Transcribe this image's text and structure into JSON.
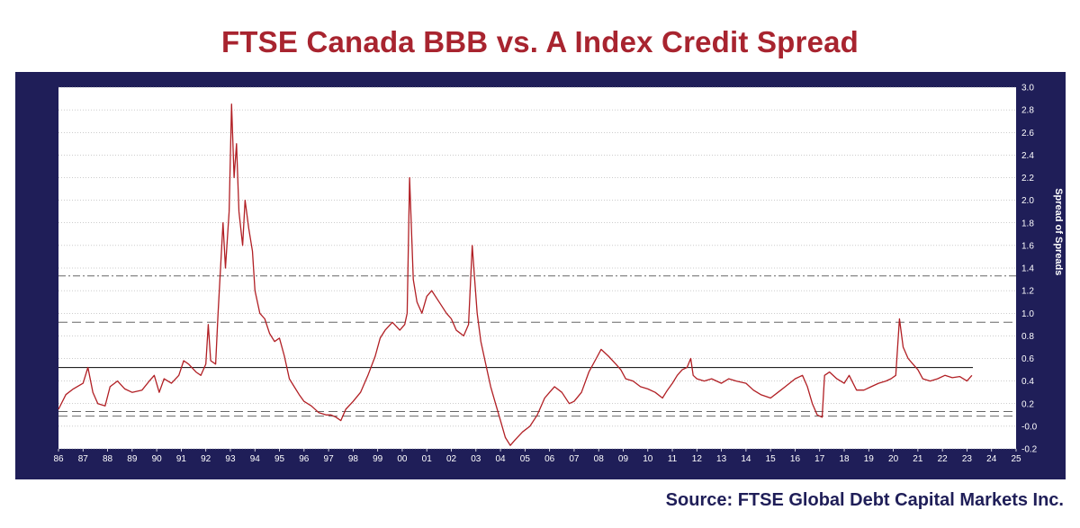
{
  "title": "FTSE Canada BBB vs. A Index Credit Spread",
  "source": "Source: FTSE Global Debt Capital Markets Inc.",
  "colors": {
    "title": "#a8242f",
    "panel": "#1f1e58",
    "series": "#b11f24",
    "grid": "#9a9a9a"
  },
  "chart_data": {
    "type": "line",
    "title": "FTSE Canada BBB vs. A Index Credit Spread",
    "xlabel": "",
    "ylabel": "Spread of Spreads",
    "xlim": [
      86,
      125
    ],
    "ylim": [
      -0.2,
      3.0
    ],
    "x_ticks": [
      "86",
      "87",
      "88",
      "89",
      "90",
      "91",
      "92",
      "93",
      "94",
      "95",
      "96",
      "97",
      "98",
      "99",
      "00",
      "01",
      "02",
      "03",
      "04",
      "05",
      "06",
      "07",
      "08",
      "09",
      "10",
      "11",
      "12",
      "13",
      "14",
      "15",
      "16",
      "17",
      "18",
      "19",
      "20",
      "21",
      "22",
      "23",
      "24",
      "25"
    ],
    "y_ticks": [
      "-0.2",
      "-0.0",
      "0.2",
      "0.4",
      "0.6",
      "0.8",
      "1.0",
      "1.2",
      "1.4",
      "1.6",
      "1.8",
      "2.0",
      "2.2",
      "2.4",
      "2.6",
      "2.8",
      "3.0"
    ],
    "grid": true,
    "y_axis_side": "right",
    "reference_lines": [
      {
        "y": 1.33,
        "style": "dash-dot"
      },
      {
        "y": 0.92,
        "style": "dashed"
      },
      {
        "y": 0.52,
        "style": "solid"
      },
      {
        "y": 0.13,
        "style": "dashed"
      },
      {
        "y": 0.09,
        "style": "dashed"
      }
    ],
    "series": [
      {
        "values": [
          [
            86.0,
            0.15
          ],
          [
            86.3,
            0.28
          ],
          [
            86.6,
            0.33
          ],
          [
            87.0,
            0.38
          ],
          [
            87.2,
            0.52
          ],
          [
            87.4,
            0.3
          ],
          [
            87.6,
            0.2
          ],
          [
            87.9,
            0.18
          ],
          [
            88.1,
            0.35
          ],
          [
            88.4,
            0.4
          ],
          [
            88.7,
            0.33
          ],
          [
            89.0,
            0.3
          ],
          [
            89.4,
            0.32
          ],
          [
            89.7,
            0.4
          ],
          [
            89.9,
            0.45
          ],
          [
            90.1,
            0.3
          ],
          [
            90.3,
            0.42
          ],
          [
            90.6,
            0.38
          ],
          [
            90.9,
            0.45
          ],
          [
            91.1,
            0.58
          ],
          [
            91.3,
            0.55
          ],
          [
            91.6,
            0.48
          ],
          [
            91.8,
            0.45
          ],
          [
            92.0,
            0.55
          ],
          [
            92.1,
            0.9
          ],
          [
            92.2,
            0.58
          ],
          [
            92.4,
            0.55
          ],
          [
            92.5,
            1.0
          ],
          [
            92.7,
            1.8
          ],
          [
            92.8,
            1.4
          ],
          [
            92.95,
            1.9
          ],
          [
            93.05,
            2.85
          ],
          [
            93.15,
            2.2
          ],
          [
            93.25,
            2.5
          ],
          [
            93.35,
            1.9
          ],
          [
            93.5,
            1.6
          ],
          [
            93.6,
            2.0
          ],
          [
            93.75,
            1.75
          ],
          [
            93.9,
            1.55
          ],
          [
            94.0,
            1.2
          ],
          [
            94.2,
            1.0
          ],
          [
            94.4,
            0.95
          ],
          [
            94.6,
            0.82
          ],
          [
            94.8,
            0.75
          ],
          [
            95.0,
            0.78
          ],
          [
            95.2,
            0.62
          ],
          [
            95.4,
            0.42
          ],
          [
            95.6,
            0.35
          ],
          [
            95.8,
            0.28
          ],
          [
            96.0,
            0.22
          ],
          [
            96.3,
            0.18
          ],
          [
            96.6,
            0.12
          ],
          [
            96.9,
            0.1
          ],
          [
            97.1,
            0.1
          ],
          [
            97.3,
            0.08
          ],
          [
            97.5,
            0.05
          ],
          [
            97.7,
            0.15
          ],
          [
            98.0,
            0.22
          ],
          [
            98.3,
            0.3
          ],
          [
            98.6,
            0.45
          ],
          [
            98.9,
            0.62
          ],
          [
            99.1,
            0.78
          ],
          [
            99.3,
            0.85
          ],
          [
            99.6,
            0.92
          ],
          [
            99.9,
            0.85
          ],
          [
            100.1,
            0.9
          ],
          [
            100.2,
            1.0
          ],
          [
            100.3,
            2.2
          ],
          [
            100.45,
            1.3
          ],
          [
            100.6,
            1.1
          ],
          [
            100.8,
            1.0
          ],
          [
            101.0,
            1.15
          ],
          [
            101.2,
            1.2
          ],
          [
            101.5,
            1.1
          ],
          [
            101.8,
            1.0
          ],
          [
            102.0,
            0.95
          ],
          [
            102.2,
            0.85
          ],
          [
            102.5,
            0.8
          ],
          [
            102.7,
            0.9
          ],
          [
            102.85,
            1.6
          ],
          [
            102.95,
            1.3
          ],
          [
            103.05,
            1.0
          ],
          [
            103.2,
            0.75
          ],
          [
            103.4,
            0.55
          ],
          [
            103.6,
            0.35
          ],
          [
            103.8,
            0.2
          ],
          [
            104.0,
            0.05
          ],
          [
            104.2,
            -0.1
          ],
          [
            104.4,
            -0.17
          ],
          [
            104.6,
            -0.12
          ],
          [
            104.9,
            -0.05
          ],
          [
            105.2,
            0.0
          ],
          [
            105.5,
            0.1
          ],
          [
            105.8,
            0.25
          ],
          [
            106.0,
            0.3
          ],
          [
            106.2,
            0.35
          ],
          [
            106.5,
            0.3
          ],
          [
            106.8,
            0.2
          ],
          [
            107.0,
            0.22
          ],
          [
            107.3,
            0.3
          ],
          [
            107.6,
            0.48
          ],
          [
            107.9,
            0.6
          ],
          [
            108.1,
            0.68
          ],
          [
            108.4,
            0.62
          ],
          [
            108.7,
            0.55
          ],
          [
            108.9,
            0.5
          ],
          [
            109.1,
            0.42
          ],
          [
            109.4,
            0.4
          ],
          [
            109.7,
            0.35
          ],
          [
            110.0,
            0.33
          ],
          [
            110.3,
            0.3
          ],
          [
            110.6,
            0.25
          ],
          [
            110.8,
            0.32
          ],
          [
            111.0,
            0.38
          ],
          [
            111.2,
            0.45
          ],
          [
            111.4,
            0.5
          ],
          [
            111.6,
            0.52
          ],
          [
            111.75,
            0.6
          ],
          [
            111.85,
            0.45
          ],
          [
            112.0,
            0.42
          ],
          [
            112.3,
            0.4
          ],
          [
            112.6,
            0.42
          ],
          [
            113.0,
            0.38
          ],
          [
            113.3,
            0.42
          ],
          [
            113.6,
            0.4
          ],
          [
            114.0,
            0.38
          ],
          [
            114.3,
            0.32
          ],
          [
            114.6,
            0.28
          ],
          [
            115.0,
            0.25
          ],
          [
            115.3,
            0.3
          ],
          [
            115.6,
            0.35
          ],
          [
            116.0,
            0.42
          ],
          [
            116.3,
            0.45
          ],
          [
            116.5,
            0.35
          ],
          [
            116.7,
            0.2
          ],
          [
            116.9,
            0.1
          ],
          [
            117.1,
            0.08
          ],
          [
            117.2,
            0.45
          ],
          [
            117.4,
            0.48
          ],
          [
            117.7,
            0.42
          ],
          [
            118.0,
            0.38
          ],
          [
            118.2,
            0.45
          ],
          [
            118.5,
            0.32
          ],
          [
            118.8,
            0.32
          ],
          [
            119.1,
            0.35
          ],
          [
            119.4,
            0.38
          ],
          [
            119.7,
            0.4
          ],
          [
            119.9,
            0.42
          ],
          [
            120.1,
            0.45
          ],
          [
            120.25,
            0.95
          ],
          [
            120.4,
            0.7
          ],
          [
            120.6,
            0.6
          ],
          [
            120.8,
            0.55
          ],
          [
            121.0,
            0.5
          ],
          [
            121.2,
            0.42
          ],
          [
            121.5,
            0.4
          ],
          [
            121.8,
            0.42
          ],
          [
            122.1,
            0.45
          ],
          [
            122.4,
            0.43
          ],
          [
            122.7,
            0.44
          ],
          [
            123.0,
            0.4
          ],
          [
            123.2,
            0.45
          ]
        ]
      }
    ]
  }
}
